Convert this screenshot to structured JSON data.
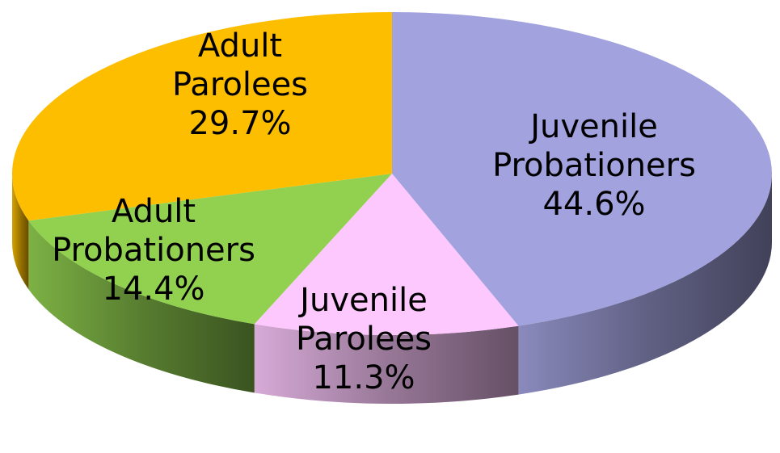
{
  "chart_data": {
    "type": "pie",
    "categories": [
      "Juvenile Probationers",
      "Juvenile Parolees",
      "Adult Probationers",
      "Adult Parolees"
    ],
    "values": [
      44.6,
      11.3,
      14.4,
      29.7
    ],
    "value_labels": [
      "44.6%",
      "11.3%",
      "14.4%",
      "29.7%"
    ],
    "colors": [
      "#a2a2de",
      "#fdc8fd",
      "#92d050",
      "#fdbe00"
    ]
  }
}
